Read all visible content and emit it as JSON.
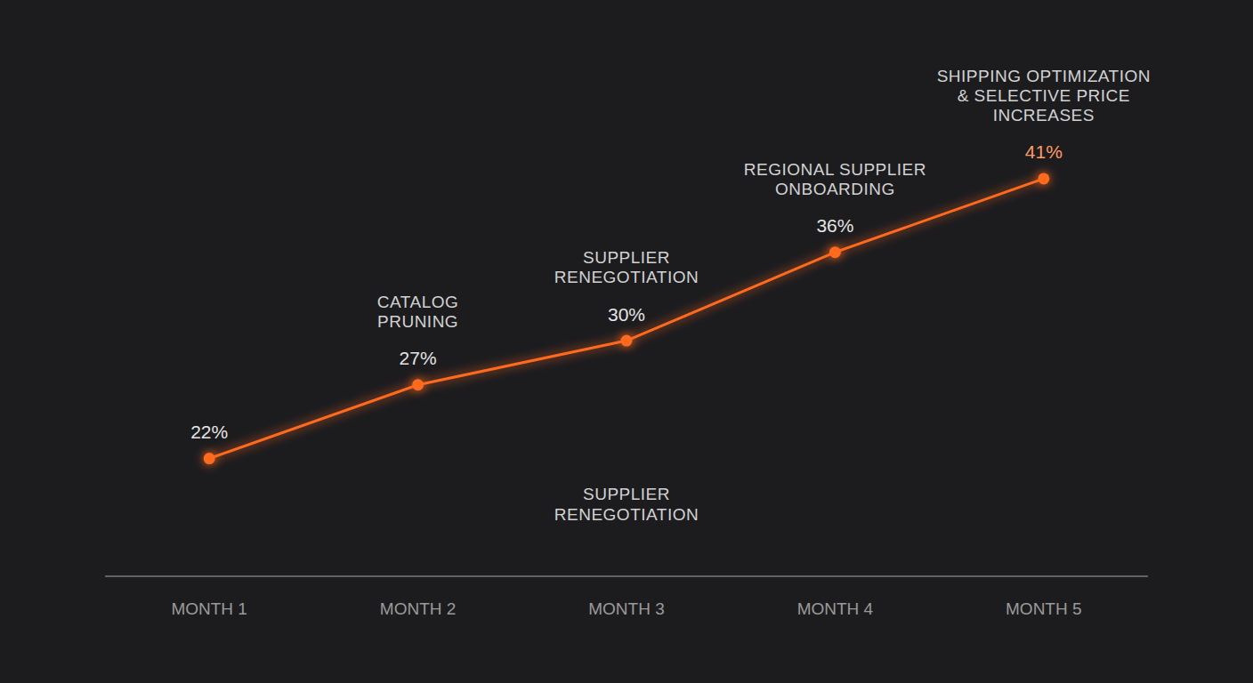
{
  "chart_data": {
    "type": "line",
    "categories": [
      "MONTH 1",
      "MONTH 2",
      "MONTH 3",
      "MONTH 4",
      "MONTH 5"
    ],
    "values": [
      22,
      27,
      30,
      36,
      41
    ],
    "value_labels": [
      "22%",
      "27%",
      "30%",
      "36%",
      "41%"
    ],
    "data_labels": true,
    "color": "#ff6a1f",
    "ylim": [
      14,
      48
    ],
    "tick_labels": "x",
    "grid": false,
    "annotations": [
      {
        "x": "MONTH 2",
        "lines": [
          "CATALOG",
          "PRUNING"
        ],
        "position": "above"
      },
      {
        "x": "MONTH 3",
        "lines": [
          "SUPPLIER",
          "RENEGOTIATION"
        ],
        "position": "above"
      },
      {
        "x": "MONTH 3",
        "lines": [
          "SUPPLIER",
          "RENEGOTIATION"
        ],
        "position": "below"
      },
      {
        "x": "MONTH 4",
        "lines": [
          "REGIONAL SUPPLIER",
          "ONBOARDING"
        ],
        "position": "above"
      },
      {
        "x": "MONTH 5",
        "lines": [
          "SHIPPING OPTIMIZATION",
          "& SELECTIVE PRICE",
          "INCREASES"
        ],
        "position": "above"
      }
    ]
  }
}
